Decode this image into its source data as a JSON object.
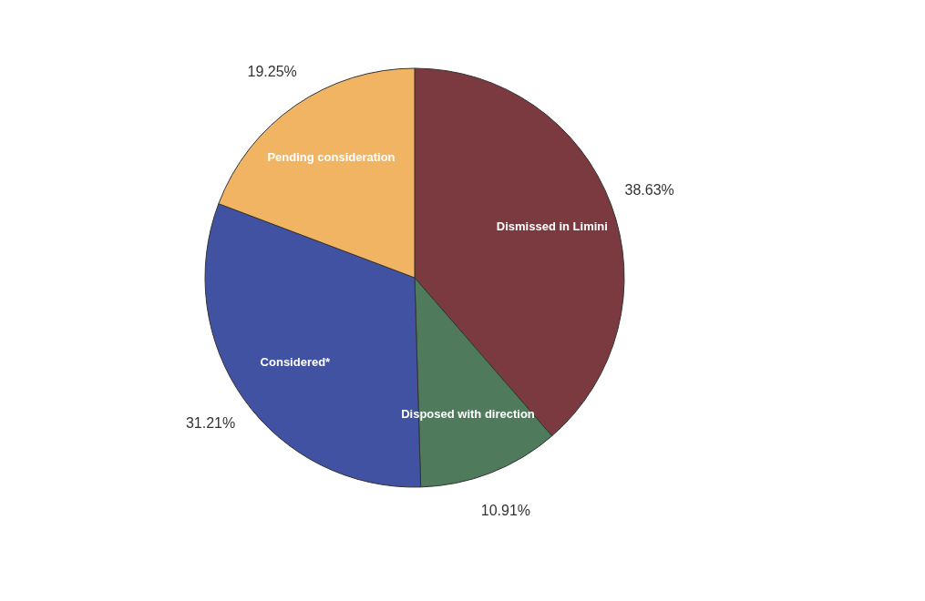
{
  "chart_data": {
    "type": "pie",
    "categories": [
      "Dismissed in Limini",
      "Disposed  with direction",
      "Considered*",
      "Pending consideration"
    ],
    "values": [
      38.63,
      10.91,
      31.21,
      19.25
    ],
    "colors": [
      "#7b3a40",
      "#4f7a5c",
      "#4252a2",
      "#f0b463"
    ],
    "value_labels": [
      "38.63%",
      "10.91%",
      "31.21%",
      "19.25%"
    ]
  }
}
